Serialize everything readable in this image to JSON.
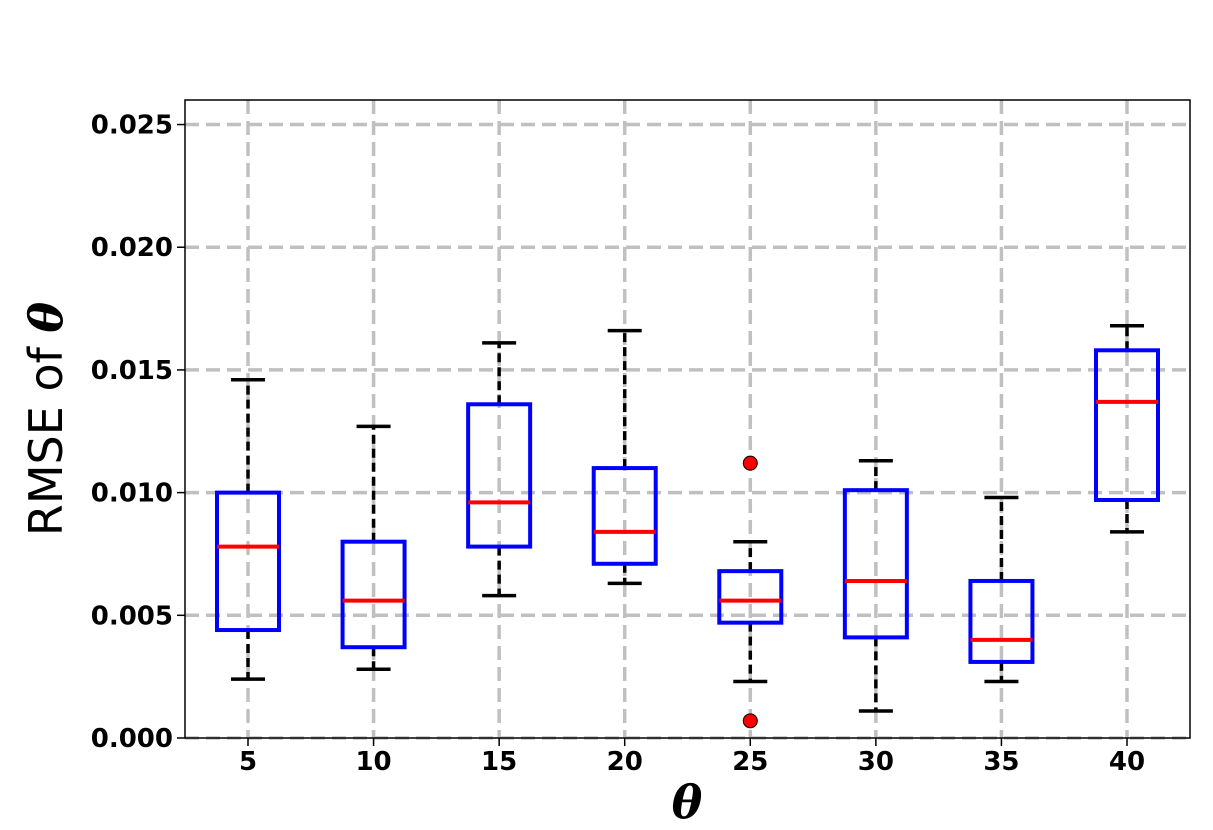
{
  "chart_data": {
    "type": "box",
    "xlabel": "θ",
    "ylabel_prefix": "RMSE of ",
    "ylabel_symbol": "θ",
    "ylim": [
      0,
      0.026
    ],
    "yticks": [
      0.0,
      0.005,
      0.01,
      0.015,
      0.02,
      0.025
    ],
    "ytick_labels": [
      "0.000",
      "0.005",
      "0.010",
      "0.015",
      "0.020",
      "0.025"
    ],
    "grid": true,
    "colors": {
      "box": "#0000ff",
      "median": "#ff0000",
      "whisker": "#000000",
      "outlier": "#ff0000",
      "grid": "#c0c0c0"
    },
    "categories": [
      "5",
      "10",
      "15",
      "20",
      "25",
      "30",
      "35",
      "40"
    ],
    "boxes": [
      {
        "whisker_low": 0.0024,
        "q1": 0.0044,
        "median": 0.0078,
        "q3": 0.01,
        "whisker_high": 0.0146,
        "outliers": []
      },
      {
        "whisker_low": 0.0028,
        "q1": 0.0037,
        "median": 0.0056,
        "q3": 0.008,
        "whisker_high": 0.0127,
        "outliers": []
      },
      {
        "whisker_low": 0.0058,
        "q1": 0.0078,
        "median": 0.0096,
        "q3": 0.0136,
        "whisker_high": 0.0161,
        "outliers": []
      },
      {
        "whisker_low": 0.0063,
        "q1": 0.0071,
        "median": 0.0084,
        "q3": 0.011,
        "whisker_high": 0.0166,
        "outliers": []
      },
      {
        "whisker_low": 0.0023,
        "q1": 0.0047,
        "median": 0.0056,
        "q3": 0.0068,
        "whisker_high": 0.008,
        "outliers": [
          0.0112,
          0.0007
        ]
      },
      {
        "whisker_low": 0.0011,
        "q1": 0.0041,
        "median": 0.0064,
        "q3": 0.0101,
        "whisker_high": 0.0113,
        "outliers": []
      },
      {
        "whisker_low": 0.0023,
        "q1": 0.0031,
        "median": 0.004,
        "q3": 0.0064,
        "whisker_high": 0.0098,
        "outliers": []
      },
      {
        "whisker_low": 0.0084,
        "q1": 0.0097,
        "median": 0.0137,
        "q3": 0.0158,
        "whisker_high": 0.0168,
        "outliers": []
      }
    ]
  }
}
